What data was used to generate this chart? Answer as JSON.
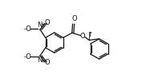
{
  "bg_color": "#ffffff",
  "line_color": "#111111",
  "lw": 0.9,
  "figsize": [
    1.82,
    1.03
  ],
  "dpi": 100,
  "xlim": [
    -2.8,
    5.0
  ],
  "ylim": [
    -2.3,
    2.5
  ],
  "ring_r": 0.6,
  "font_size": 6.0
}
